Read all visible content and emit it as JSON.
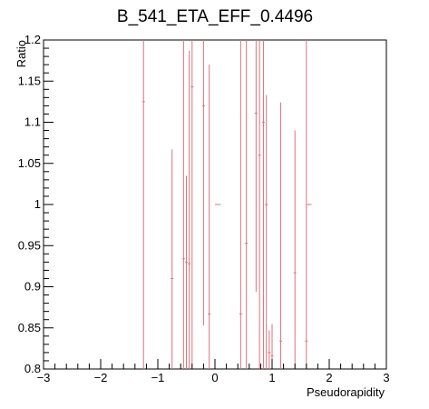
{
  "chart_data": {
    "type": "scatter",
    "title": "B_541_ETA_EFF_0.4496",
    "xlabel": "Pseudorapidity",
    "ylabel": "Ratio",
    "xlim": [
      -3,
      3
    ],
    "ylim": [
      0.8,
      1.2
    ],
    "x_ticks": [
      -3,
      -2,
      -1,
      0,
      1,
      2,
      3
    ],
    "x_tick_labels": [
      "−3",
      "−2",
      "−1",
      "0",
      "1",
      "2",
      "3"
    ],
    "y_ticks": [
      0.8,
      0.85,
      0.9,
      0.95,
      1.0,
      1.05,
      1.1,
      1.15,
      1.2
    ],
    "y_tick_labels": [
      "0.8",
      "0.85",
      "0.9",
      "0.95",
      "1",
      "1.05",
      "1.1",
      "1.15",
      "1.2"
    ],
    "grid": false,
    "legend": "none",
    "series": [
      {
        "color": "#e0707a",
        "points": [
          {
            "x": -1.25,
            "y": 1.125,
            "ylo": 0.8,
            "yhi": 1.2
          },
          {
            "x": -0.75,
            "y": 0.91,
            "ylo": 0.8,
            "yhi": 1.067
          },
          {
            "x": -0.55,
            "y": 0.934,
            "ylo": 0.8,
            "yhi": 1.2
          },
          {
            "x": -0.5,
            "y": 0.93,
            "ylo": 0.8,
            "yhi": 1.035
          },
          {
            "x": -0.45,
            "y": 0.928,
            "ylo": 0.8,
            "yhi": 1.187
          },
          {
            "x": -0.4,
            "y": 1.143,
            "ylo": 0.8,
            "yhi": 1.2
          },
          {
            "x": -0.2,
            "y": 1.12,
            "ylo": 0.853,
            "yhi": 1.2
          },
          {
            "x": -0.1,
            "y": 0.867,
            "ylo": 0.8,
            "yhi": 1.17
          },
          {
            "x": 0.05,
            "y": 1.0,
            "ylo": 1.0,
            "yhi": 1.0,
            "xerr": 0.05
          },
          {
            "x": 0.45,
            "y": 0.867,
            "ylo": 0.8,
            "yhi": 1.2
          },
          {
            "x": 0.55,
            "y": 0.953,
            "ylo": 0.8,
            "yhi": 1.2
          },
          {
            "x": 0.72,
            "y": 1.111,
            "ylo": 0.894,
            "yhi": 1.2
          },
          {
            "x": 0.78,
            "y": 1.06,
            "ylo": 0.8,
            "yhi": 1.2
          },
          {
            "x": 0.85,
            "y": 1.1,
            "ylo": 0.8,
            "yhi": 1.2
          },
          {
            "x": 0.9,
            "y": 1.0,
            "ylo": 0.8,
            "yhi": 1.133
          },
          {
            "x": 0.95,
            "y": 0.82,
            "ylo": 0.8,
            "yhi": 0.847
          },
          {
            "x": 1.0,
            "y": 0.816,
            "ylo": 0.8,
            "yhi": 0.855
          },
          {
            "x": 1.15,
            "y": 0.834,
            "ylo": 0.8,
            "yhi": 1.124
          },
          {
            "x": 1.4,
            "y": 0.917,
            "ylo": 0.8,
            "yhi": 1.09
          },
          {
            "x": 1.6,
            "y": 0.834,
            "ylo": 0.8,
            "yhi": 1.2
          },
          {
            "x": 1.65,
            "y": 1.0,
            "ylo": 1.0,
            "yhi": 1.0,
            "xerr": 0.04
          }
        ]
      }
    ]
  }
}
